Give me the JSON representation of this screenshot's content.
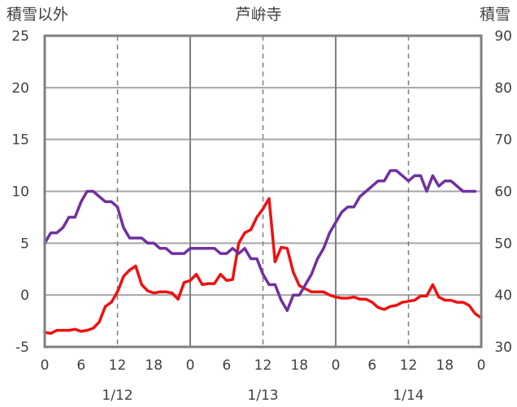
{
  "chart_data": {
    "type": "line",
    "title": "芦峅寺",
    "ylabel_left": "積雪以外",
    "ylabel_right": "積雪",
    "y_left": {
      "min": -5,
      "max": 25,
      "ticks": [
        -5,
        0,
        5,
        10,
        15,
        20,
        25
      ]
    },
    "y_right": {
      "min": 30,
      "max": 90,
      "ticks": [
        30,
        40,
        50,
        60,
        70,
        80,
        90
      ]
    },
    "x_range": [
      0,
      72
    ],
    "x_ticks": [
      {
        "x": 0,
        "label": "0"
      },
      {
        "x": 6,
        "label": "6"
      },
      {
        "x": 12,
        "label": "12"
      },
      {
        "x": 18,
        "label": "18"
      },
      {
        "x": 24,
        "label": "0"
      },
      {
        "x": 30,
        "label": "6"
      },
      {
        "x": 36,
        "label": "12"
      },
      {
        "x": 42,
        "label": "18"
      },
      {
        "x": 48,
        "label": "0"
      },
      {
        "x": 54,
        "label": "6"
      },
      {
        "x": 60,
        "label": "12"
      },
      {
        "x": 66,
        "label": "18"
      },
      {
        "x": 72,
        "label": "0"
      }
    ],
    "date_labels": [
      {
        "x": 12,
        "label": "1/12"
      },
      {
        "x": 36,
        "label": "1/13"
      },
      {
        "x": 60,
        "label": "1/14"
      }
    ],
    "gridlines": {
      "solid_x": [
        24,
        48
      ],
      "dashed_x": [
        12,
        36,
        60
      ],
      "solid_y_left": [
        0,
        5,
        10,
        15,
        20
      ]
    },
    "series": [
      {
        "axis": "left",
        "color": "#ee1111",
        "points": [
          [
            0,
            -3.6
          ],
          [
            1,
            -3.7
          ],
          [
            2,
            -3.4
          ],
          [
            3,
            -3.4
          ],
          [
            4,
            -3.4
          ],
          [
            5,
            -3.3
          ],
          [
            6,
            -3.5
          ],
          [
            7,
            -3.4
          ],
          [
            8,
            -3.2
          ],
          [
            9,
            -2.6
          ],
          [
            10,
            -1.1
          ],
          [
            11,
            -0.7
          ],
          [
            12,
            0.3
          ],
          [
            13,
            1.8
          ],
          [
            14,
            2.4
          ],
          [
            15,
            2.8
          ],
          [
            16,
            1.0
          ],
          [
            17,
            0.4
          ],
          [
            18,
            0.2
          ],
          [
            19,
            0.3
          ],
          [
            20,
            0.3
          ],
          [
            21,
            0.2
          ],
          [
            22,
            -0.4
          ],
          [
            23,
            1.2
          ],
          [
            24,
            1.4
          ],
          [
            25,
            2.0
          ],
          [
            26,
            1.0
          ],
          [
            27,
            1.1
          ],
          [
            28,
            1.1
          ],
          [
            29,
            2.0
          ],
          [
            30,
            1.4
          ],
          [
            31,
            1.5
          ],
          [
            32,
            5.0
          ],
          [
            33,
            6.0
          ],
          [
            34,
            6.3
          ],
          [
            35,
            7.5
          ],
          [
            36,
            8.3
          ],
          [
            37,
            9.3
          ],
          [
            38,
            3.2
          ],
          [
            39,
            4.6
          ],
          [
            40,
            4.5
          ],
          [
            41,
            2.2
          ],
          [
            42,
            0.9
          ],
          [
            43,
            0.6
          ],
          [
            44,
            0.3
          ],
          [
            45,
            0.3
          ],
          [
            46,
            0.3
          ],
          [
            47,
            0.0
          ],
          [
            48,
            -0.2
          ],
          [
            49,
            -0.3
          ],
          [
            50,
            -0.3
          ],
          [
            51,
            -0.2
          ],
          [
            52,
            -0.4
          ],
          [
            53,
            -0.4
          ],
          [
            54,
            -0.7
          ],
          [
            55,
            -1.2
          ],
          [
            56,
            -1.4
          ],
          [
            57,
            -1.1
          ],
          [
            58,
            -1.0
          ],
          [
            59,
            -0.7
          ],
          [
            60,
            -0.6
          ],
          [
            61,
            -0.5
          ],
          [
            62,
            -0.1
          ],
          [
            63,
            -0.1
          ],
          [
            64,
            1.0
          ],
          [
            65,
            -0.2
          ],
          [
            66,
            -0.5
          ],
          [
            67,
            -0.5
          ],
          [
            68,
            -0.7
          ],
          [
            69,
            -0.7
          ],
          [
            70,
            -1.0
          ],
          [
            71,
            -1.8
          ],
          [
            72,
            -2.2
          ]
        ]
      },
      {
        "axis": "right",
        "color": "#7030a0",
        "points": [
          [
            0,
            50
          ],
          [
            1,
            52
          ],
          [
            2,
            52
          ],
          [
            3,
            53
          ],
          [
            4,
            55
          ],
          [
            5,
            55
          ],
          [
            6,
            58
          ],
          [
            7,
            60
          ],
          [
            8,
            60
          ],
          [
            9,
            59
          ],
          [
            10,
            58
          ],
          [
            11,
            58
          ],
          [
            12,
            57
          ],
          [
            13,
            53
          ],
          [
            14,
            51
          ],
          [
            15,
            51
          ],
          [
            16,
            51
          ],
          [
            17,
            50
          ],
          [
            18,
            50
          ],
          [
            19,
            49
          ],
          [
            20,
            49
          ],
          [
            21,
            48
          ],
          [
            22,
            48
          ],
          [
            23,
            48
          ],
          [
            24,
            49
          ],
          [
            25,
            49
          ],
          [
            26,
            49
          ],
          [
            27,
            49
          ],
          [
            28,
            49
          ],
          [
            29,
            48
          ],
          [
            30,
            48
          ],
          [
            31,
            49
          ],
          [
            32,
            48
          ],
          [
            33,
            49
          ],
          [
            34,
            47
          ],
          [
            35,
            47
          ],
          [
            36,
            44
          ],
          [
            37,
            42
          ],
          [
            38,
            42
          ],
          [
            39,
            39
          ],
          [
            40,
            37
          ],
          [
            41,
            40
          ],
          [
            42,
            40
          ],
          [
            43,
            42
          ],
          [
            44,
            44
          ],
          [
            45,
            47
          ],
          [
            46,
            49
          ],
          [
            47,
            52
          ],
          [
            48,
            54
          ],
          [
            49,
            56
          ],
          [
            50,
            57
          ],
          [
            51,
            57
          ],
          [
            52,
            59
          ],
          [
            53,
            60
          ],
          [
            54,
            61
          ],
          [
            55,
            62
          ],
          [
            56,
            62
          ],
          [
            57,
            64
          ],
          [
            58,
            64
          ],
          [
            59,
            63
          ],
          [
            60,
            62
          ],
          [
            61,
            63
          ],
          [
            62,
            63
          ],
          [
            63,
            60
          ],
          [
            64,
            63
          ],
          [
            65,
            61
          ],
          [
            66,
            62
          ],
          [
            67,
            62
          ],
          [
            68,
            61
          ],
          [
            69,
            60
          ],
          [
            70,
            60
          ],
          [
            71,
            60
          ]
        ]
      }
    ]
  }
}
